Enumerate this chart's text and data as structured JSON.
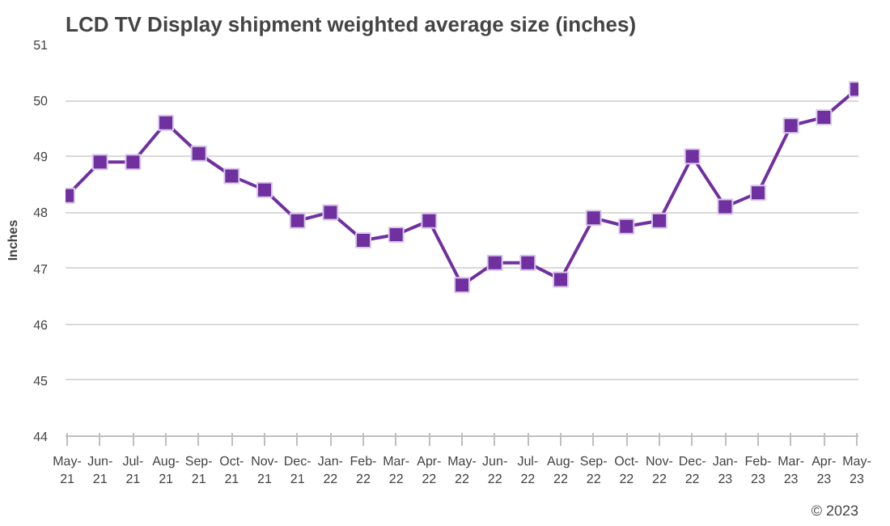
{
  "chart_data": {
    "type": "line",
    "title": "LCD TV Display shipment weighted average size (inches)",
    "ylabel": "Inches",
    "categories": [
      "May-21",
      "Jun-21",
      "Jul-21",
      "Aug-21",
      "Sep-21",
      "Oct-21",
      "Nov-21",
      "Dec-21",
      "Jan-22",
      "Feb-22",
      "Mar-22",
      "Apr-22",
      "May-22",
      "Jun-22",
      "Jul-22",
      "Aug-22",
      "Sep-22",
      "Oct-22",
      "Nov-22",
      "Dec-22",
      "Jan-23",
      "Feb-23",
      "Mar-23",
      "Apr-23",
      "May-23"
    ],
    "series": [
      {
        "color": "#7030a0",
        "values": [
          48.3,
          48.9,
          48.9,
          49.6,
          49.05,
          48.65,
          48.4,
          47.85,
          48.0,
          47.5,
          47.6,
          47.85,
          46.7,
          47.1,
          47.1,
          46.8,
          47.9,
          47.75,
          47.85,
          49.0,
          48.1,
          48.35,
          49.55,
          49.7,
          50.2
        ]
      }
    ],
    "ylim": [
      44,
      51
    ],
    "yticks": [
      44,
      45,
      46,
      47,
      48,
      49,
      50,
      51
    ],
    "grid": "y",
    "marker": "square",
    "line_style": "solid",
    "annotations": [
      "© 2023"
    ]
  }
}
